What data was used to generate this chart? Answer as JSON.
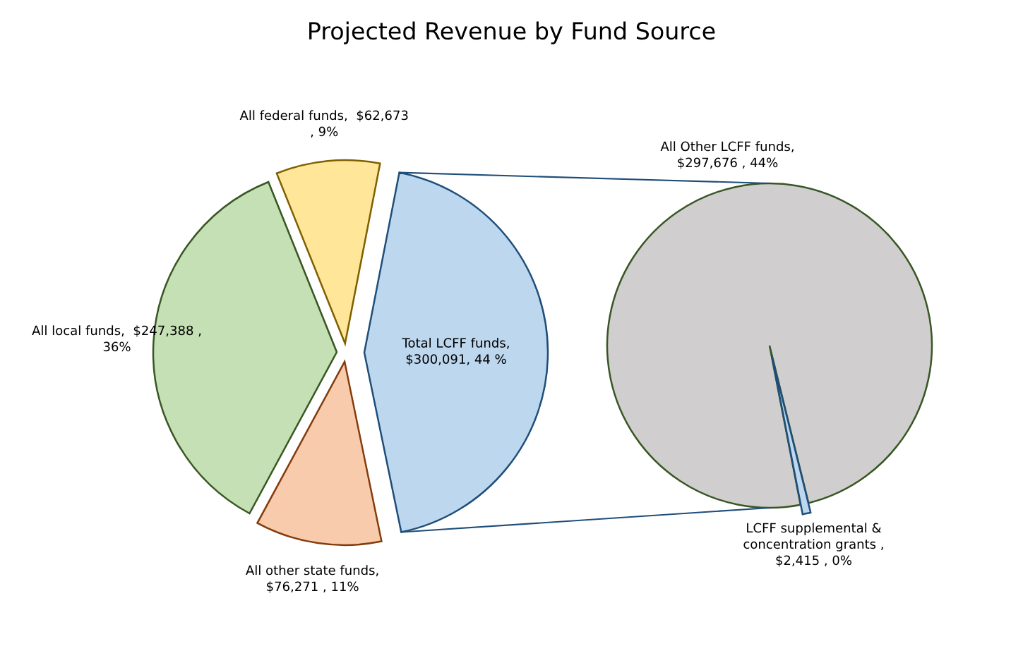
{
  "chart_data": [
    {
      "type": "pie",
      "title": "Projected Revenue by Fund Source",
      "categories": [
        "Total LCFF funds",
        "All other state funds",
        "All local funds",
        "All federal funds"
      ],
      "values": [
        300091,
        76271,
        247388,
        62673
      ],
      "value_labels": [
        ", $300,091, 44 %",
        ", $76,271 , 11%",
        ",  $247,388 , 36%",
        ",  $62,673 , 9%"
      ],
      "colors": [
        "#bdd7ee",
        "#f8cbad",
        "#c5e0b4",
        "#ffe699"
      ]
    },
    {
      "type": "pie",
      "categories": [
        "All Other LCFF funds",
        "LCFF supplemental & concentration grants "
      ],
      "values": [
        297676,
        2415
      ],
      "value_labels": [
        ", $297,676 , 44%",
        ", $2,415 , 0%"
      ],
      "colors": [
        "#d0cece",
        "#bdd7ee"
      ]
    }
  ]
}
